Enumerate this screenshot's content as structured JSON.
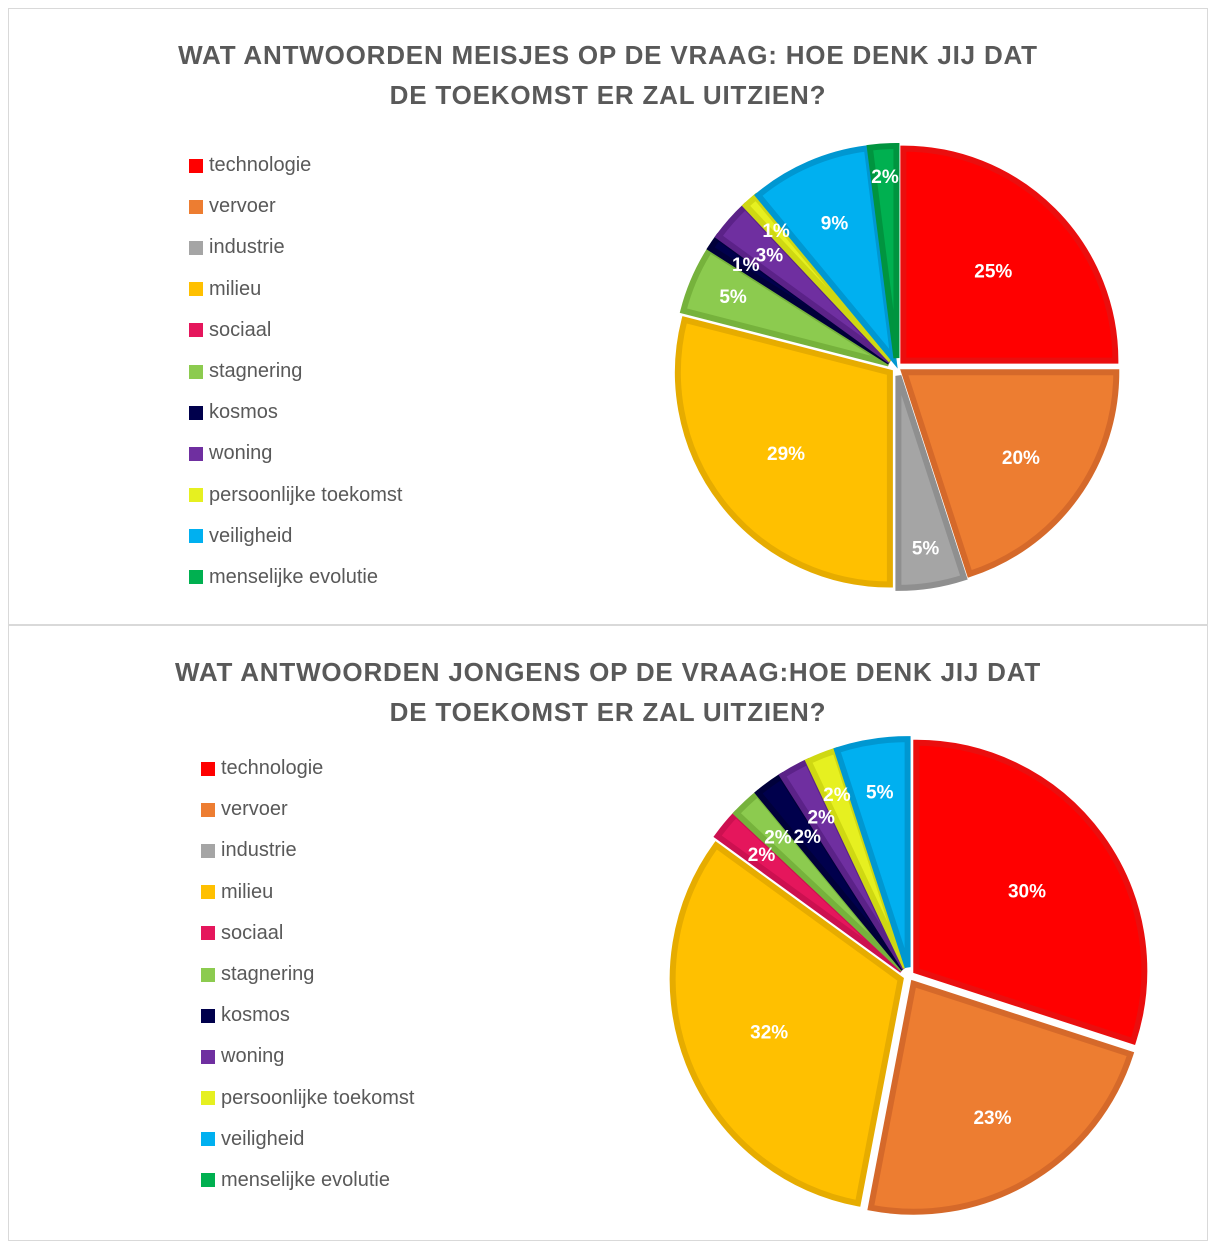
{
  "chart_data": [
    {
      "type": "pie",
      "title_lines": [
        "WAT ANTWOORDEN MEISJES OP DE VRAAG: HOE DENK JIJ DAT",
        "DE TOEKOMST ER ZAL UITZIEN?"
      ],
      "legend_position": "left",
      "categories": [
        "technologie",
        "vervoer",
        "industrie",
        "milieu",
        "sociaal",
        "stagnering",
        "kosmos",
        "woning",
        "persoonlijke toekomst",
        "veiligheid",
        "menselijke evolutie"
      ],
      "values": [
        25,
        20,
        5,
        29,
        0,
        5,
        1,
        3,
        1,
        9,
        2
      ],
      "data_labels": [
        "25%",
        "20%",
        "5%",
        "29%",
        "",
        "5%",
        "1%",
        "3%",
        "1%",
        "9%",
        "2%"
      ]
    },
    {
      "type": "pie",
      "title_lines": [
        "WAT ANTWOORDEN JONGENS OP DE VRAAG:HOE DENK JIJ DAT",
        "DE TOEKOMST ER ZAL UITZIEN?"
      ],
      "legend_position": "left",
      "categories": [
        "technologie",
        "vervoer",
        "industrie",
        "milieu",
        "sociaal",
        "stagnering",
        "kosmos",
        "woning",
        "persoonlijke toekomst",
        "veiligheid",
        "menselijke evolutie"
      ],
      "values": [
        30,
        23,
        0,
        32,
        2,
        2,
        2,
        2,
        2,
        5,
        0
      ],
      "data_labels": [
        "30%",
        "23%",
        "",
        "32%",
        "2%",
        "2%",
        "2%",
        "2%",
        "2%",
        "5%",
        ""
      ]
    }
  ],
  "colors": [
    "#ff0000",
    "#ed7d31",
    "#a5a5a5",
    "#ffc000",
    "#e5165c",
    "#8ccb4f",
    "#00004c",
    "#6f2fa0",
    "#e6f020",
    "#00b0f0",
    "#00b050"
  ],
  "border_colors": [
    "#ea0e0e",
    "#d5692a",
    "#8f8f8f",
    "#e6ac00",
    "#cc1050",
    "#76b23c",
    "#00003a",
    "#5b2288",
    "#cfd812",
    "#0097d1",
    "#00943f"
  ]
}
